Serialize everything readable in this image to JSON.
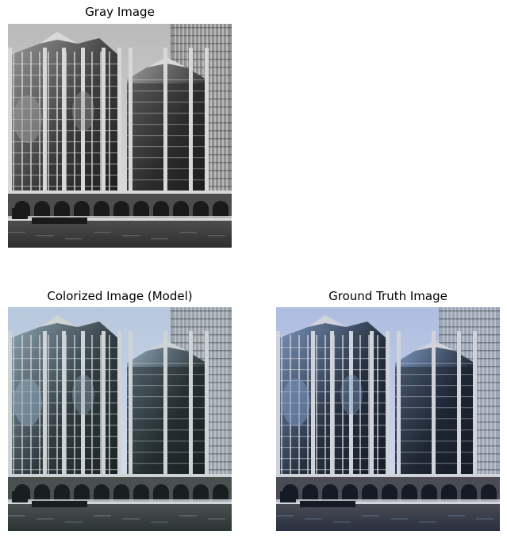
{
  "panels": [
    {
      "title": "Gray Image",
      "variant": "gray"
    },
    {
      "title": "Colorized Image (Model)",
      "variant": "colorized"
    },
    {
      "title": "Ground Truth Image",
      "variant": "truth"
    }
  ],
  "palettes": {
    "gray": {
      "sky_top": "#b9b9b9",
      "sky_bottom": "#e3e3e3",
      "glass": "#3c3c3c",
      "glass_light": "#9a9a9a",
      "frame": "#d8d8d8",
      "tower": "#8f8f8f",
      "base": "#4d4d4d",
      "water": "#2e2e2e",
      "dark": "#1a1a1a"
    },
    "colorized": {
      "sky_top": "#b7c7dd",
      "sky_bottom": "#dde5ef",
      "glass": "#2f3b40",
      "glass_light": "#90a6b6",
      "frame": "#cfd3d6",
      "tower": "#9aa2ab",
      "base": "#4b4f4f",
      "water": "#2b3434",
      "dark": "#17201f"
    },
    "truth": {
      "sky_top": "#aebde0",
      "sky_bottom": "#d9dff0",
      "glass": "#25303f",
      "glass_light": "#7e98bf",
      "frame": "#d1d3db",
      "tower": "#9ca5b5",
      "base": "#4a4b54",
      "water": "#2a3040",
      "dark": "#151a24"
    }
  }
}
